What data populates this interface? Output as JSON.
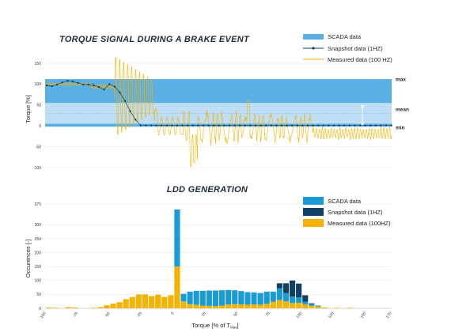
{
  "colors": {
    "scada": "#5ab0e4",
    "scada_light": "#cfe6f7",
    "snapshot": "#123f66",
    "measured": "#f5b200"
  },
  "chart_data": [
    {
      "type": "line",
      "title": "TORQUE SIGNAL DURING A BRAKE EVENT",
      "ylabel": "Torque [%]",
      "xlabel": "",
      "ylim": [
        -100,
        150
      ],
      "yticks": [
        150,
        100,
        50,
        0,
        -50,
        -100
      ],
      "legend": [
        "SCADA data",
        "Snapshot data (1HZ)",
        "Measured data (100 HZ)"
      ],
      "band_labels": [
        "max",
        "mean",
        "min"
      ],
      "scada_band": {
        "max": 112,
        "mean": 30,
        "min": -2
      },
      "snapshot_series": {
        "name": "Snapshot data (1HZ)",
        "values": [
          97,
          95,
          99,
          104,
          108,
          106,
          103,
          99,
          99,
          97,
          93,
          87,
          100,
          94,
          80,
          60,
          35,
          15,
          1,
          1,
          1,
          1,
          1,
          1,
          1,
          1,
          1,
          1,
          1,
          1,
          1,
          1,
          1,
          1,
          1,
          1,
          1,
          1,
          1,
          1,
          1,
          1,
          1,
          1,
          1,
          1,
          1,
          1,
          1,
          1,
          1,
          1,
          1,
          1,
          1,
          1,
          1,
          1,
          1,
          1,
          1,
          1,
          1,
          1,
          1,
          1,
          1
        ]
      },
      "measured_series": {
        "name": "Measured data (100 HZ)"
      }
    },
    {
      "type": "bar",
      "title": "LDD GENERATION",
      "ylabel": "Occurences [-]",
      "xlabel": "Torque [% of T",
      "xlabel_sub": "Max",
      "xlabel_end": "]",
      "ylim": [
        0,
        375
      ],
      "yticks": [
        375,
        300,
        250,
        200,
        150,
        100,
        50,
        0
      ],
      "xticks": [
        "-100",
        "-75",
        "-50",
        "-25",
        "0",
        "25",
        "50",
        "75",
        "100",
        "125",
        "150",
        "170"
      ],
      "legend": [
        "SCADA data",
        "Snapshot data (1HZ)",
        "Measured data (100HZ)"
      ],
      "bin_width": 5,
      "bin_start": -100,
      "measured_values": [
        3,
        2,
        0,
        4,
        3,
        0,
        0,
        2,
        4,
        11,
        17,
        22,
        33,
        41,
        50,
        50,
        44,
        49,
        41,
        47,
        150,
        25,
        15,
        13,
        10,
        9,
        8,
        10,
        14,
        15,
        14,
        13,
        14,
        13,
        16,
        24,
        30,
        25,
        19,
        20,
        14,
        9,
        7,
        3,
        0,
        2,
        0,
        2,
        0,
        0,
        0,
        0,
        0,
        0,
        0
      ],
      "snapshot_values": [
        0,
        0,
        0,
        0,
        0,
        0,
        0,
        0,
        0,
        0,
        0,
        0,
        0,
        0,
        0,
        0,
        0,
        0,
        0,
        0,
        0,
        0,
        0,
        0,
        0,
        0,
        0,
        0,
        0,
        0,
        0,
        0,
        0,
        0,
        0,
        0,
        18,
        35,
        58,
        50,
        23,
        3,
        0,
        0,
        0,
        0,
        0,
        0,
        0,
        0,
        0,
        0,
        0,
        0,
        0
      ],
      "scada_values": [
        0,
        0,
        0,
        0,
        0,
        0,
        0,
        0,
        0,
        0,
        0,
        0,
        0,
        0,
        0,
        0,
        0,
        0,
        0,
        0,
        205,
        27,
        45,
        50,
        53,
        55,
        56,
        55,
        52,
        50,
        48,
        45,
        43,
        42,
        44,
        36,
        42,
        30,
        23,
        19,
        10,
        6,
        3,
        0,
        0,
        0,
        0,
        0,
        0,
        0,
        0,
        0,
        0,
        0,
        0
      ]
    }
  ]
}
